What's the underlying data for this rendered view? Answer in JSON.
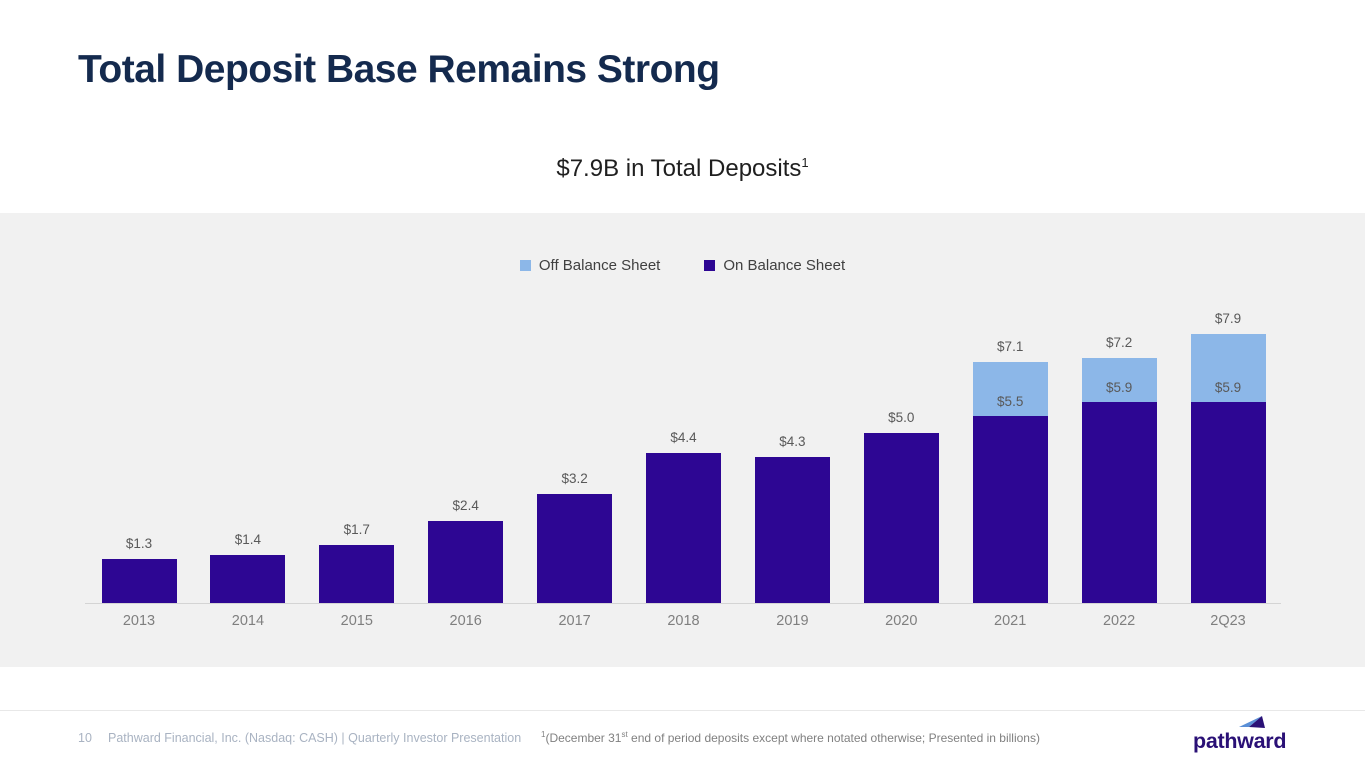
{
  "slide": {
    "title": "Total Deposit Base Remains Strong",
    "subtitle_text": "$7.9B in Total Deposits",
    "subtitle_sup": "1"
  },
  "legend": {
    "items": [
      {
        "label": "Off Balance Sheet",
        "color": "#8cb7e8"
      },
      {
        "label": "On Balance Sheet",
        "color": "#2d0693"
      }
    ]
  },
  "chart_data": {
    "type": "bar",
    "stacked": true,
    "title": "$7.9B in Total Deposits",
    "xlabel": "",
    "ylabel": "",
    "categories": [
      "2013",
      "2014",
      "2015",
      "2016",
      "2017",
      "2018",
      "2019",
      "2020",
      "2021",
      "2022",
      "2Q23"
    ],
    "series": [
      {
        "name": "On Balance Sheet",
        "color": "#2d0693",
        "values": [
          1.3,
          1.4,
          1.7,
          2.4,
          3.2,
          4.4,
          4.3,
          5.0,
          5.5,
          5.9,
          5.9
        ]
      },
      {
        "name": "Off Balance Sheet",
        "color": "#8cb7e8",
        "values": [
          0,
          0,
          0,
          0,
          0,
          0,
          0,
          0,
          1.6,
          1.3,
          2.0
        ]
      }
    ],
    "totals": [
      1.3,
      1.4,
      1.7,
      2.4,
      3.2,
      4.4,
      4.3,
      5.0,
      7.1,
      7.2,
      7.9
    ],
    "total_labels": [
      "$1.3",
      "$1.4",
      "$1.7",
      "$2.4",
      "$3.2",
      "$4.4",
      "$4.3",
      "$5.0",
      "$7.1",
      "$7.2",
      "$7.9"
    ],
    "segment_labels": [
      "",
      "",
      "",
      "",
      "",
      "",
      "",
      "",
      "$5.5",
      "$5.9",
      "$5.9"
    ],
    "ylim": [
      0,
      8.6
    ],
    "grid": false,
    "legend_position": "top",
    "units": "billions USD"
  },
  "footer": {
    "page_number": "10",
    "attribution": "Pathward Financial, Inc. (Nasdaq: CASH) | Quarterly Investor Presentation",
    "footnote_sup1": "1",
    "footnote_part1": "(December 31",
    "footnote_sup2": "st",
    "footnote_part2": " end of period deposits except where notated otherwise; Presented in billions)",
    "logo_text": "pathward"
  },
  "colors": {
    "title_navy": "#142a4e",
    "band_gray": "#f1f1f1",
    "on_balance_purple": "#2d0693",
    "off_balance_blue": "#8cb7e8",
    "value_label_gray": "#595959",
    "category_label_gray": "#7f7f7f",
    "axis_line_gray": "#d4d4d4",
    "footer_text_gray_blue": "#a9b3c2",
    "footnote_gray": "#808080",
    "logo_purple": "#2a1076"
  }
}
